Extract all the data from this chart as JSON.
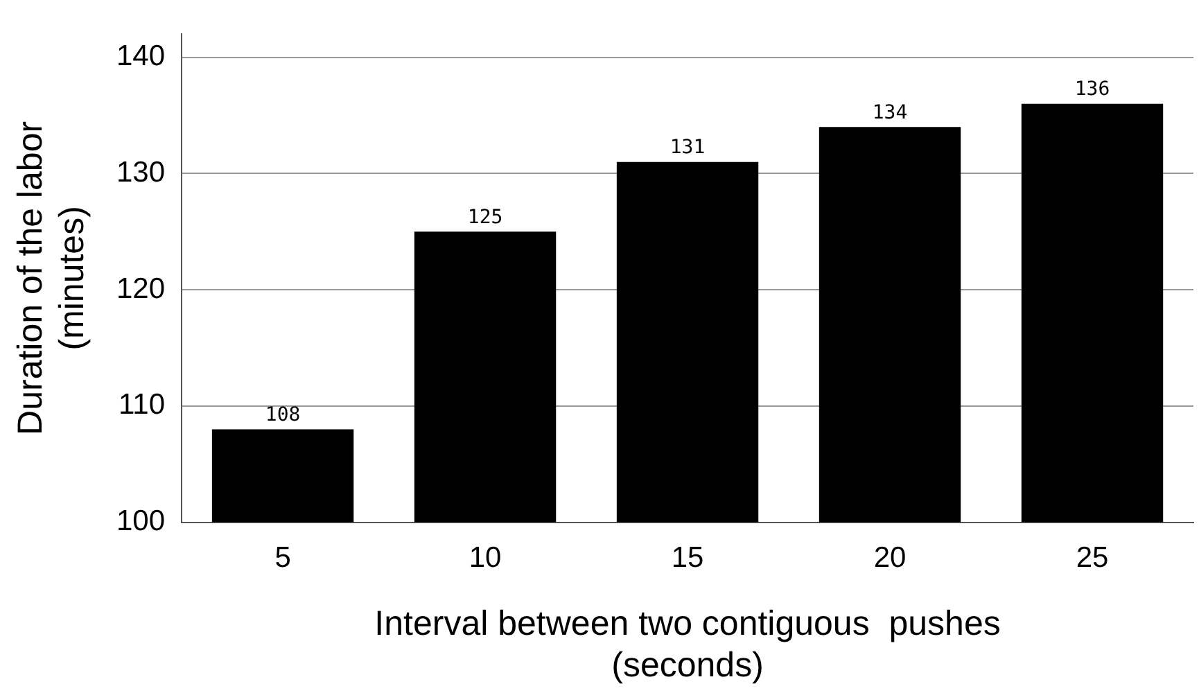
{
  "chart_data": {
    "type": "bar",
    "xlabel": "Interval between two contiguous  pushes\n(seconds)",
    "ylabel": "Duration of the labor\n(minutes)",
    "categories": [
      "5",
      "10",
      "15",
      "20",
      "25"
    ],
    "values": [
      108,
      125,
      131,
      134,
      136
    ],
    "color": "#000000",
    "ylim": [
      100,
      142
    ],
    "yticks": [
      100,
      110,
      120,
      130,
      140
    ],
    "grid": "y",
    "data_labels": true,
    "legend": false
  }
}
